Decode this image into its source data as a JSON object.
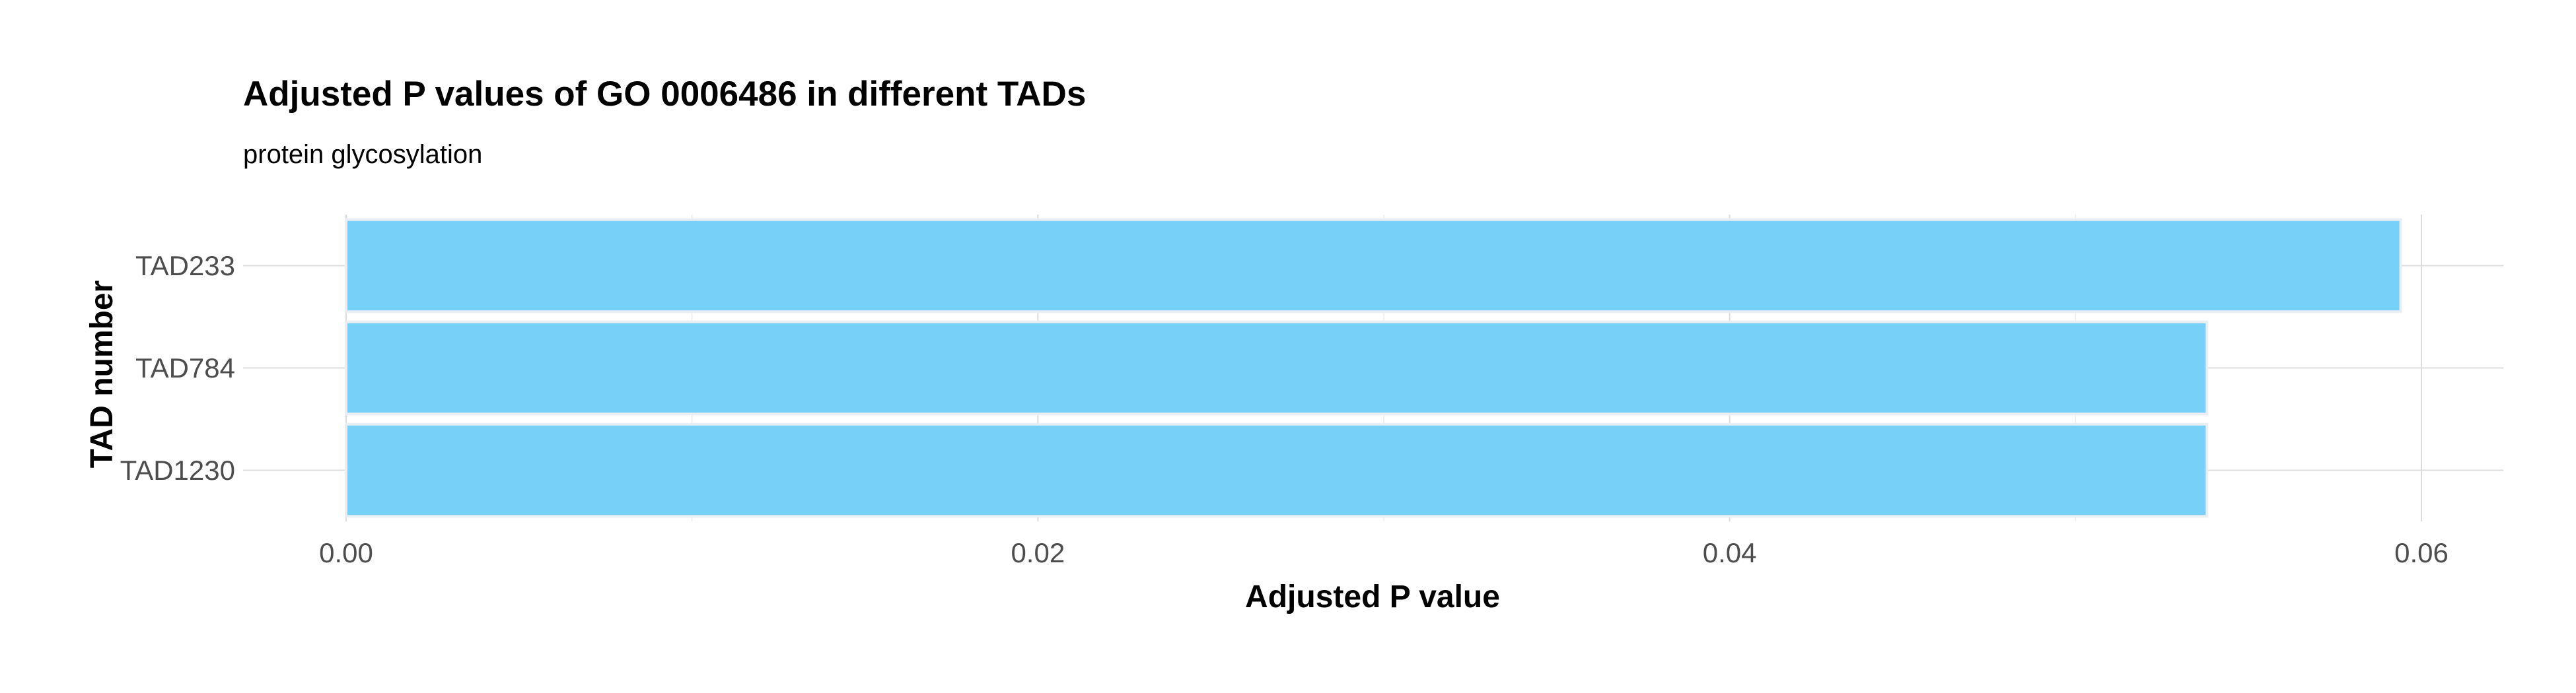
{
  "chart_data": {
    "type": "bar",
    "orientation": "horizontal",
    "title": "Adjusted P values of GO 0006486 in different TADs",
    "subtitle": "protein glycosylation",
    "xlabel": "Adjusted P value",
    "ylabel": "TAD number",
    "categories": [
      "TAD233",
      "TAD784",
      "TAD1230"
    ],
    "values": [
      0.0594,
      0.0538,
      0.0538
    ],
    "xlim": [
      -0.003,
      0.0624
    ],
    "xticks": [
      "0.00",
      "0.02",
      "0.04",
      "0.06"
    ],
    "xtick_values": [
      0,
      0.02,
      0.04,
      0.06
    ],
    "grid": true,
    "legend": "none",
    "bar_color": "#74cff8",
    "bar_edge_color": "#e8eef2",
    "grid_color": "#dcdcdc"
  }
}
